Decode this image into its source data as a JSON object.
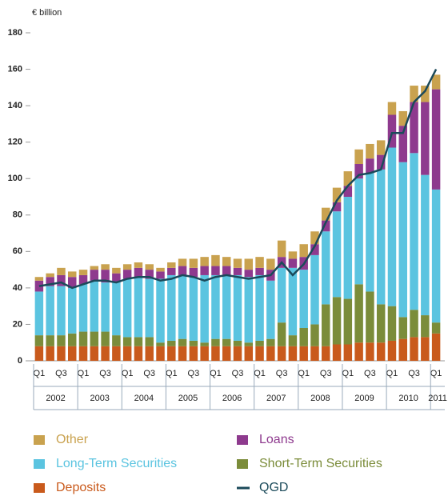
{
  "chart_data": {
    "type": "bar",
    "y_axis_label": "€ billion",
    "stacked": true,
    "categories": [
      "Q1",
      null,
      "Q3",
      null,
      "Q1",
      null,
      "Q3",
      null,
      "Q1",
      null,
      "Q3",
      null,
      "Q1",
      null,
      "Q3",
      null,
      "Q1",
      null,
      "Q3",
      null,
      "Q1",
      null,
      "Q3",
      null,
      "Q1",
      null,
      "Q3",
      null,
      "Q1",
      null,
      "Q3",
      null,
      "Q1",
      null,
      "Q3",
      null,
      "Q1"
    ],
    "years": [
      "2002",
      "2003",
      "2004",
      "2005",
      "2006",
      "2007",
      "2008",
      "2009",
      "2010",
      "2011"
    ],
    "series": [
      {
        "name": "Deposits",
        "color": "#c95a1c",
        "values": [
          8,
          8,
          8,
          8,
          8,
          8,
          8,
          8,
          8,
          8,
          8,
          8,
          8,
          8,
          8,
          8,
          8,
          8,
          8,
          8,
          8,
          8,
          8,
          8,
          8,
          8,
          8,
          9,
          9,
          10,
          10,
          10,
          11,
          12,
          13,
          13,
          15
        ]
      },
      {
        "name": "Short-Term Securities",
        "color": "#7b8c3a",
        "values": [
          6,
          6,
          6,
          7,
          8,
          8,
          8,
          6,
          5,
          5,
          5,
          2,
          3,
          4,
          3,
          2,
          4,
          4,
          3,
          2,
          3,
          4,
          13,
          6,
          10,
          12,
          23,
          26,
          25,
          32,
          28,
          21,
          19,
          12,
          15,
          12,
          6
        ]
      },
      {
        "name": "Long-Term Securities",
        "color": "#5bc4e0",
        "values": [
          24,
          27,
          27,
          25,
          26,
          28,
          27,
          29,
          32,
          33,
          32,
          35,
          36,
          35,
          35,
          37,
          35,
          35,
          36,
          36,
          36,
          32,
          30,
          37,
          32,
          38,
          40,
          47,
          56,
          58,
          65,
          74,
          87,
          85,
          86,
          77,
          73
        ]
      },
      {
        "name": "Loans",
        "color": "#8e3a8e",
        "values": [
          6,
          5,
          6,
          6,
          5,
          6,
          7,
          5,
          5,
          5,
          5,
          4,
          4,
          5,
          5,
          5,
          5,
          5,
          4,
          4,
          4,
          6,
          6,
          5,
          7,
          6,
          6,
          5,
          6,
          8,
          8,
          8,
          18,
          20,
          28,
          40,
          55
        ]
      },
      {
        "name": "Other",
        "color": "#c9a24f",
        "values": [
          2,
          2,
          4,
          3,
          3,
          2,
          3,
          3,
          3,
          3,
          3,
          2,
          3,
          4,
          5,
          5,
          6,
          5,
          5,
          6,
          6,
          6,
          9,
          4,
          7,
          7,
          7,
          8,
          8,
          8,
          8,
          8,
          7,
          8,
          9,
          9,
          8
        ]
      },
      {
        "name": "QGD",
        "type": "line",
        "color": "#1b4a5a",
        "values": [
          41,
          42,
          43,
          40,
          42,
          44,
          44,
          43,
          45,
          46,
          46,
          44,
          45,
          47,
          46,
          44,
          46,
          47,
          46,
          45,
          46,
          47,
          54,
          47,
          53,
          63,
          76,
          88,
          96,
          102,
          103,
          105,
          125,
          125,
          142,
          148,
          160
        ]
      }
    ],
    "ylim": [
      0,
      180
    ],
    "yticks": [
      0,
      20,
      40,
      60,
      80,
      100,
      120,
      140,
      160,
      180
    ],
    "grid": false
  }
}
